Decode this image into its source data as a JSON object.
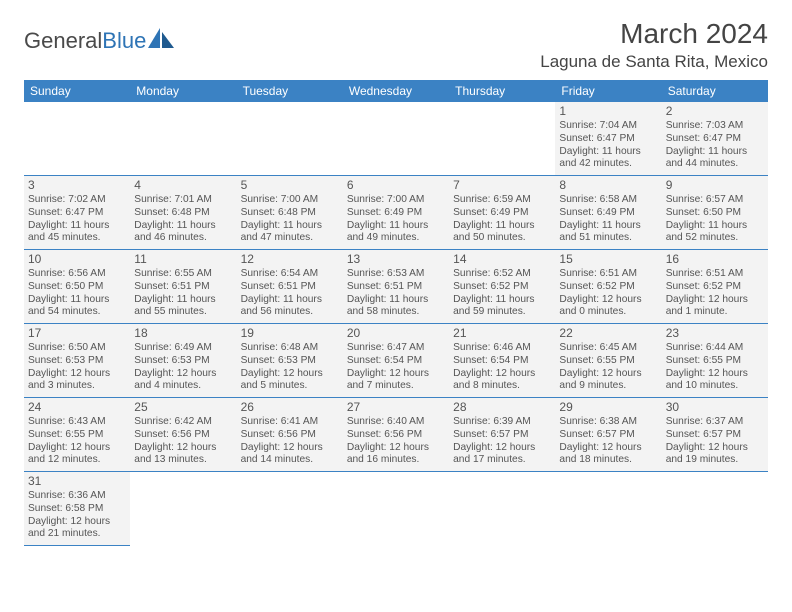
{
  "logo": {
    "general": "General",
    "blue": "Blue"
  },
  "title": "March 2024",
  "location": "Laguna de Santa Rita, Mexico",
  "headers": [
    "Sunday",
    "Monday",
    "Tuesday",
    "Wednesday",
    "Thursday",
    "Friday",
    "Saturday"
  ],
  "colors": {
    "header_bg": "#3b82c4",
    "cell_bg": "#f3f3f3",
    "border": "#3b82c4",
    "text": "#555555"
  },
  "leading_empty": 5,
  "days": [
    {
      "n": "1",
      "sr": "7:04 AM",
      "ss": "6:47 PM",
      "dl": "11 hours and 42 minutes."
    },
    {
      "n": "2",
      "sr": "7:03 AM",
      "ss": "6:47 PM",
      "dl": "11 hours and 44 minutes."
    },
    {
      "n": "3",
      "sr": "7:02 AM",
      "ss": "6:47 PM",
      "dl": "11 hours and 45 minutes."
    },
    {
      "n": "4",
      "sr": "7:01 AM",
      "ss": "6:48 PM",
      "dl": "11 hours and 46 minutes."
    },
    {
      "n": "5",
      "sr": "7:00 AM",
      "ss": "6:48 PM",
      "dl": "11 hours and 47 minutes."
    },
    {
      "n": "6",
      "sr": "7:00 AM",
      "ss": "6:49 PM",
      "dl": "11 hours and 49 minutes."
    },
    {
      "n": "7",
      "sr": "6:59 AM",
      "ss": "6:49 PM",
      "dl": "11 hours and 50 minutes."
    },
    {
      "n": "8",
      "sr": "6:58 AM",
      "ss": "6:49 PM",
      "dl": "11 hours and 51 minutes."
    },
    {
      "n": "9",
      "sr": "6:57 AM",
      "ss": "6:50 PM",
      "dl": "11 hours and 52 minutes."
    },
    {
      "n": "10",
      "sr": "6:56 AM",
      "ss": "6:50 PM",
      "dl": "11 hours and 54 minutes."
    },
    {
      "n": "11",
      "sr": "6:55 AM",
      "ss": "6:51 PM",
      "dl": "11 hours and 55 minutes."
    },
    {
      "n": "12",
      "sr": "6:54 AM",
      "ss": "6:51 PM",
      "dl": "11 hours and 56 minutes."
    },
    {
      "n": "13",
      "sr": "6:53 AM",
      "ss": "6:51 PM",
      "dl": "11 hours and 58 minutes."
    },
    {
      "n": "14",
      "sr": "6:52 AM",
      "ss": "6:52 PM",
      "dl": "11 hours and 59 minutes."
    },
    {
      "n": "15",
      "sr": "6:51 AM",
      "ss": "6:52 PM",
      "dl": "12 hours and 0 minutes."
    },
    {
      "n": "16",
      "sr": "6:51 AM",
      "ss": "6:52 PM",
      "dl": "12 hours and 1 minute."
    },
    {
      "n": "17",
      "sr": "6:50 AM",
      "ss": "6:53 PM",
      "dl": "12 hours and 3 minutes."
    },
    {
      "n": "18",
      "sr": "6:49 AM",
      "ss": "6:53 PM",
      "dl": "12 hours and 4 minutes."
    },
    {
      "n": "19",
      "sr": "6:48 AM",
      "ss": "6:53 PM",
      "dl": "12 hours and 5 minutes."
    },
    {
      "n": "20",
      "sr": "6:47 AM",
      "ss": "6:54 PM",
      "dl": "12 hours and 7 minutes."
    },
    {
      "n": "21",
      "sr": "6:46 AM",
      "ss": "6:54 PM",
      "dl": "12 hours and 8 minutes."
    },
    {
      "n": "22",
      "sr": "6:45 AM",
      "ss": "6:55 PM",
      "dl": "12 hours and 9 minutes."
    },
    {
      "n": "23",
      "sr": "6:44 AM",
      "ss": "6:55 PM",
      "dl": "12 hours and 10 minutes."
    },
    {
      "n": "24",
      "sr": "6:43 AM",
      "ss": "6:55 PM",
      "dl": "12 hours and 12 minutes."
    },
    {
      "n": "25",
      "sr": "6:42 AM",
      "ss": "6:56 PM",
      "dl": "12 hours and 13 minutes."
    },
    {
      "n": "26",
      "sr": "6:41 AM",
      "ss": "6:56 PM",
      "dl": "12 hours and 14 minutes."
    },
    {
      "n": "27",
      "sr": "6:40 AM",
      "ss": "6:56 PM",
      "dl": "12 hours and 16 minutes."
    },
    {
      "n": "28",
      "sr": "6:39 AM",
      "ss": "6:57 PM",
      "dl": "12 hours and 17 minutes."
    },
    {
      "n": "29",
      "sr": "6:38 AM",
      "ss": "6:57 PM",
      "dl": "12 hours and 18 minutes."
    },
    {
      "n": "30",
      "sr": "6:37 AM",
      "ss": "6:57 PM",
      "dl": "12 hours and 19 minutes."
    },
    {
      "n": "31",
      "sr": "6:36 AM",
      "ss": "6:58 PM",
      "dl": "12 hours and 21 minutes."
    }
  ],
  "labels": {
    "sunrise": "Sunrise: ",
    "sunset": "Sunset: ",
    "daylight": "Daylight: "
  }
}
